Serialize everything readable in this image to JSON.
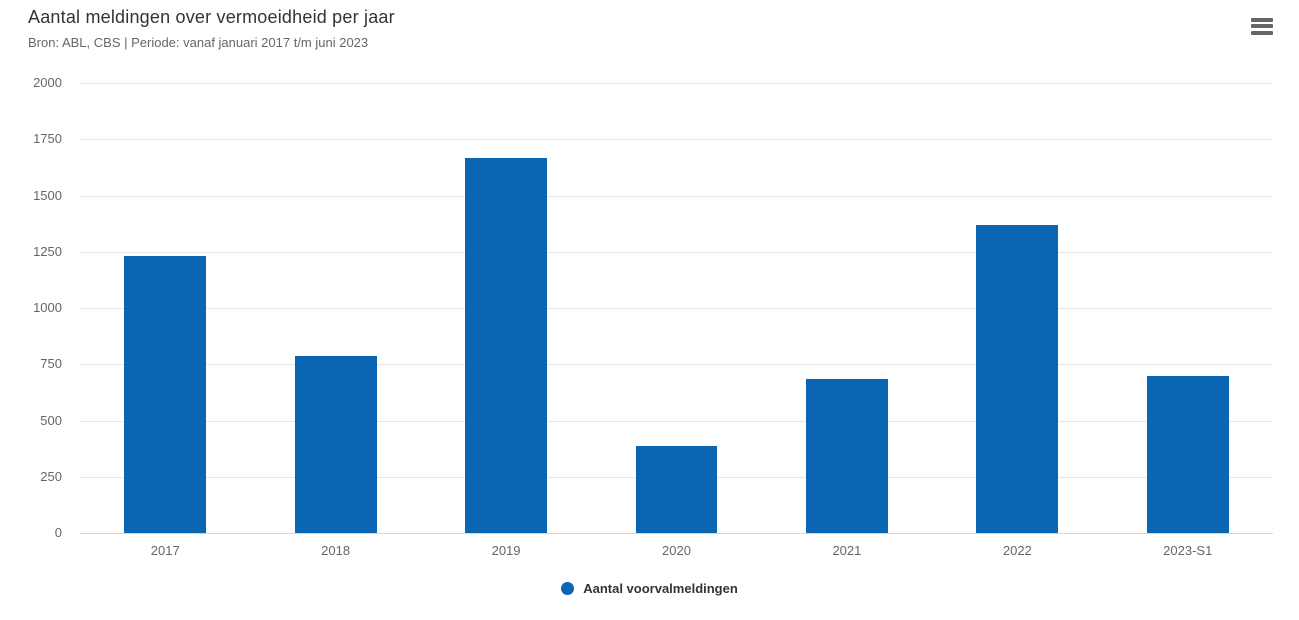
{
  "header": {
    "title": "Aantal meldingen over vermoeidheid per jaar",
    "subtitle": "Bron: ABL, CBS | Periode: vanaf januari 2017 t/m juni 2023"
  },
  "colors": {
    "bar": "#0a66b2",
    "grid": "#e6e6e6",
    "axis_line": "#ccd6eb",
    "menu_icon": "#666666",
    "muted_text": "#666666",
    "dark_text": "#333333"
  },
  "icons": {
    "context_menu": "hamburger-menu"
  },
  "chart_data": {
    "type": "bar",
    "title": "Aantal meldingen over vermoeidheid per jaar",
    "subtitle": "Bron: ABL, CBS | Periode: vanaf januari 2017 t/m juni 2023",
    "categories": [
      "2017",
      "2018",
      "2019",
      "2020",
      "2021",
      "2022",
      "2023-S1"
    ],
    "series": [
      {
        "name": "Aantal voorvalmeldingen",
        "values": [
          1230,
          785,
          1665,
          385,
          685,
          1370,
          700
        ]
      }
    ],
    "xlabel": "",
    "ylabel": "",
    "ylim": [
      0,
      2000
    ],
    "yticks": [
      0,
      250,
      500,
      750,
      1000,
      1250,
      1500,
      1750,
      2000
    ],
    "grid": true,
    "legend_position": "bottom"
  }
}
